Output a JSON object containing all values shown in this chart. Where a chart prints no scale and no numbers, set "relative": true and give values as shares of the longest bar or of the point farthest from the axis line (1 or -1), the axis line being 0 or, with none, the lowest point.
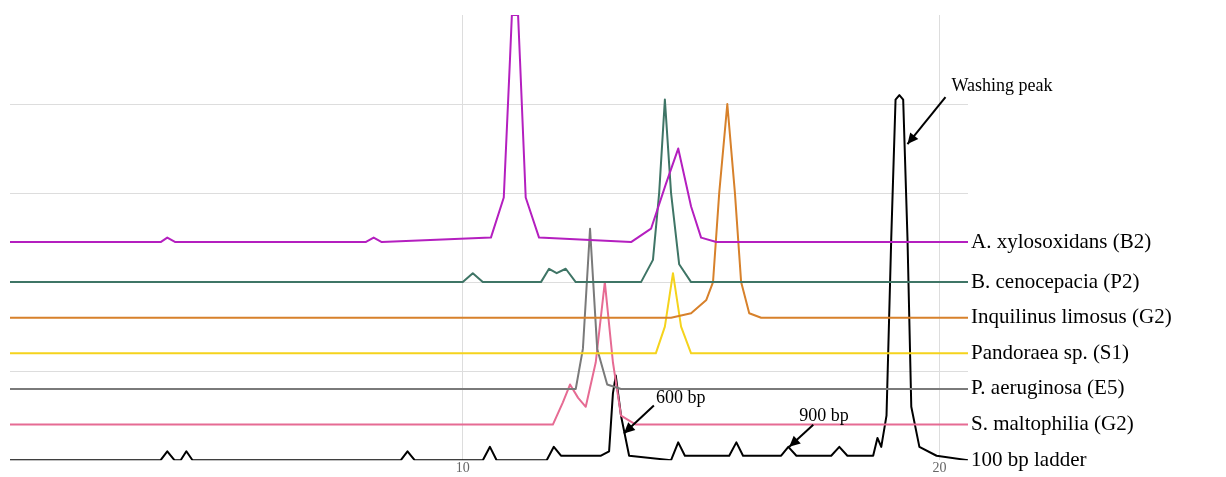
{
  "chart_data": {
    "type": "line",
    "relative": true,
    "grid": true,
    "legend": false,
    "marker": "none",
    "line_style": "solid",
    "xlim": [
      0.5,
      20.6
    ],
    "xticks": [
      10,
      20
    ],
    "series": [
      {
        "name": "A. xylosoxidans (B2)",
        "color": "#b41fbf",
        "x": [
          0.5,
          3.66,
          3.8,
          3.97,
          7.96,
          8.13,
          8.3,
          10.59,
          10.86,
          10.99,
          11.03,
          11.09,
          11.16,
          11.2,
          11.32,
          11.6,
          13.53,
          13.95,
          14.26,
          14.52,
          14.79,
          15.0,
          15.32,
          20.6
        ],
        "values": [
          0.49,
          0.49,
          0.5,
          0.49,
          0.49,
          0.5,
          0.49,
          0.5,
          0.59,
          0.9,
          1.0,
          1.0,
          1.0,
          0.9,
          0.59,
          0.5,
          0.49,
          0.52,
          0.62,
          0.7,
          0.57,
          0.5,
          0.49,
          0.49
        ]
      },
      {
        "name": "B. cenocepacia (P2)",
        "color": "#3f7566",
        "x": [
          0.5,
          10.0,
          10.21,
          10.42,
          11.64,
          11.81,
          11.97,
          12.16,
          12.37,
          13.74,
          13.99,
          14.12,
          14.24,
          14.37,
          14.54,
          14.79,
          20.6
        ],
        "values": [
          0.4,
          0.4,
          0.42,
          0.4,
          0.4,
          0.43,
          0.42,
          0.43,
          0.4,
          0.4,
          0.45,
          0.6,
          0.81,
          0.6,
          0.44,
          0.4,
          0.4
        ]
      },
      {
        "name": "Inquilinus limosus (G2)",
        "color": "#d7812b",
        "x": [
          0.5,
          14.37,
          14.79,
          15.11,
          15.25,
          15.38,
          15.55,
          15.71,
          15.84,
          16.01,
          16.26,
          20.6
        ],
        "values": [
          0.32,
          0.32,
          0.33,
          0.36,
          0.4,
          0.6,
          0.8,
          0.6,
          0.4,
          0.33,
          0.32,
          0.32
        ]
      },
      {
        "name": "Pandoraea sp. (S1)",
        "color": "#f5d31c",
        "x": [
          0.5,
          14.05,
          14.24,
          14.41,
          14.58,
          14.79,
          20.6
        ],
        "values": [
          0.24,
          0.24,
          0.3,
          0.42,
          0.3,
          0.24,
          0.24
        ]
      },
      {
        "name": "P. aeruginosa (E5)",
        "color": "#7a7a7a",
        "x": [
          0.5,
          12.37,
          12.52,
          12.67,
          12.82,
          13.03,
          13.32,
          20.6
        ],
        "values": [
          0.16,
          0.16,
          0.25,
          0.52,
          0.25,
          0.17,
          0.16,
          0.16
        ]
      },
      {
        "name": "S. maltophilia (G2)",
        "color": "#e66b93",
        "x": [
          0.5,
          11.89,
          12.1,
          12.25,
          12.42,
          12.58,
          12.79,
          12.98,
          13.15,
          13.32,
          13.63,
          20.6
        ],
        "values": [
          0.08,
          0.08,
          0.13,
          0.17,
          0.14,
          0.12,
          0.22,
          0.4,
          0.22,
          0.1,
          0.08,
          0.08
        ]
      },
      {
        "name": "100 bp ladder",
        "color": "#000000",
        "x": [
          0.5,
          3.66,
          3.8,
          3.95,
          4.08,
          4.2,
          4.33,
          8.7,
          8.84,
          8.99,
          10.42,
          10.57,
          10.71,
          11.76,
          11.91,
          12.06,
          12.9,
          13.07,
          13.15,
          13.21,
          13.32,
          13.49,
          14.37,
          14.52,
          14.66,
          15.59,
          15.74,
          15.88,
          16.68,
          16.83,
          17.0,
          17.73,
          17.9,
          18.07,
          18.61,
          18.7,
          18.78,
          18.89,
          18.99,
          19.08,
          19.16,
          19.24,
          19.33,
          19.41,
          19.58,
          19.94,
          20.6
        ],
        "values": [
          0,
          0,
          0.02,
          0,
          0,
          0.02,
          0,
          0,
          0.02,
          0,
          0,
          0.03,
          0,
          0,
          0.03,
          0.01,
          0.01,
          0.02,
          0.15,
          0.19,
          0.1,
          0.01,
          0,
          0.04,
          0.01,
          0.01,
          0.04,
          0.01,
          0.01,
          0.03,
          0.01,
          0.01,
          0.03,
          0.01,
          0.01,
          0.05,
          0.03,
          0.1,
          0.5,
          0.81,
          0.82,
          0.81,
          0.5,
          0.12,
          0.03,
          0.01,
          0
        ]
      }
    ],
    "annotations": [
      {
        "text": "Washing peak",
        "x": 19.33,
        "y": 0.71
      },
      {
        "text": "600 bp",
        "x": 13.38,
        "y": 0.06
      },
      {
        "text": "900 bp",
        "x": 16.85,
        "y": 0.03
      }
    ]
  }
}
